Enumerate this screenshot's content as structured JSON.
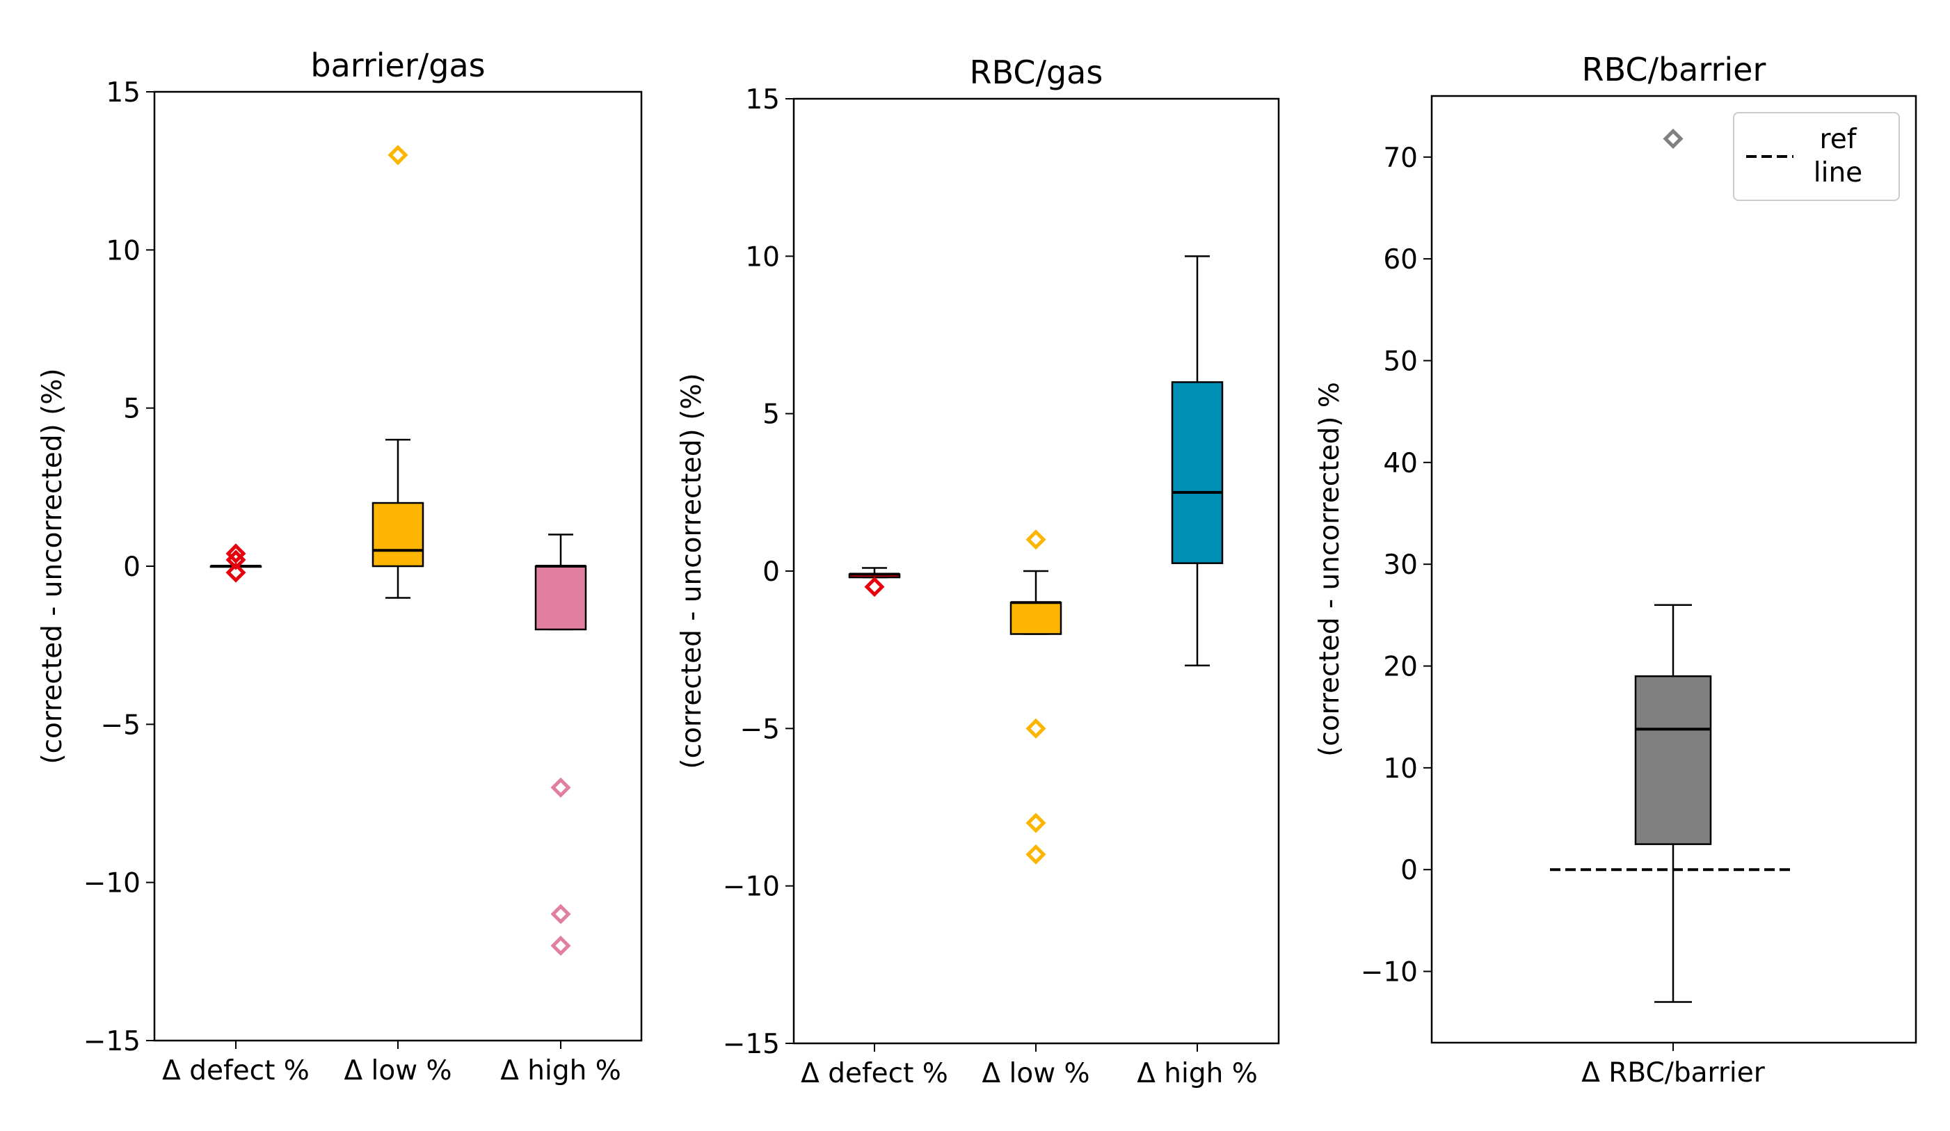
{
  "figure": {
    "colors": {
      "defect": "#e6000c",
      "low": "#fcb500",
      "high_barrier": "#e17fa1",
      "high_rbc": "#0090b6",
      "rbc_barrier": "#808080",
      "median": "#000000"
    }
  },
  "chart_data": [
    {
      "type": "box",
      "title": "barrier/gas",
      "xlabel": "",
      "ylabel": "(corrected - uncorrected) (%)",
      "ylim": [
        -15,
        15
      ],
      "yticks": [
        15,
        10,
        5,
        0,
        -5,
        -10,
        -15
      ],
      "yticklabels": [
        "15",
        "10",
        "5",
        "0",
        "−5",
        "−10",
        "−15"
      ],
      "categories": [
        "Δ defect %",
        "Δ low %",
        "Δ high %"
      ],
      "boxes": [
        {
          "q1": 0,
          "median": 0,
          "q3": 0,
          "whislo": 0,
          "whishi": 0,
          "fliers": [
            0.4,
            0.2,
            -0.2
          ],
          "color": "defect"
        },
        {
          "q1": 0,
          "median": 0.5,
          "q3": 2,
          "whislo": -1,
          "whishi": 4,
          "fliers": [
            13
          ],
          "color": "low"
        },
        {
          "q1": -2,
          "median": 0,
          "q3": 0,
          "whislo": -2,
          "whishi": 1,
          "fliers": [
            -7,
            -11,
            -12
          ],
          "color": "high_barrier"
        }
      ]
    },
    {
      "type": "box",
      "title": "RBC/gas",
      "xlabel": "",
      "ylabel": "(corrected - uncorrected) (%)",
      "ylim": [
        -15,
        15
      ],
      "yticks": [
        15,
        10,
        5,
        0,
        -5,
        -10,
        -15
      ],
      "yticklabels": [
        "15",
        "10",
        "5",
        "0",
        "−5",
        "−10",
        "−15"
      ],
      "categories": [
        "Δ defect %",
        "Δ low %",
        "Δ high %"
      ],
      "boxes": [
        {
          "q1": -0.2,
          "median": -0.1,
          "q3": -0.1,
          "whislo": -0.2,
          "whishi": 0.1,
          "fliers": [
            -0.5
          ],
          "color": "defect"
        },
        {
          "q1": -2,
          "median": -1,
          "q3": -1,
          "whislo": -2,
          "whishi": 0,
          "fliers": [
            1,
            -5,
            -8,
            -9
          ],
          "color": "low"
        },
        {
          "q1": 0.25,
          "median": 2.5,
          "q3": 6,
          "whislo": -3,
          "whishi": 10,
          "fliers": [],
          "color": "high_rbc"
        }
      ]
    },
    {
      "type": "box",
      "title": "RBC/barrier",
      "xlabel": "",
      "ylabel": "(corrected - uncorrected) %",
      "ylim": [
        -17,
        76
      ],
      "yticks": [
        70,
        60,
        50,
        40,
        30,
        20,
        10,
        0,
        -10
      ],
      "yticklabels": [
        "70",
        "60",
        "50",
        "40",
        "30",
        "20",
        "10",
        "0",
        "−10"
      ],
      "categories": [
        "Δ RBC/barrier"
      ],
      "boxes": [
        {
          "q1": 2.5,
          "median": 13.8,
          "q3": 19,
          "whislo": -13,
          "whishi": 26,
          "fliers": [
            71.8
          ],
          "color": "rbc_barrier"
        }
      ],
      "ref_line": {
        "y": 0
      },
      "legend": {
        "label": "ref\nline",
        "lines": [
          "ref",
          "line"
        ],
        "position": "top-right"
      }
    }
  ]
}
